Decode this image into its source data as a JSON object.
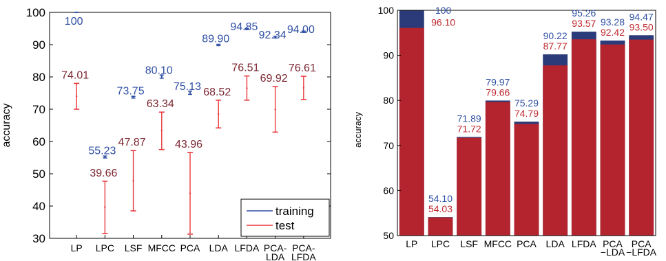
{
  "chart_data": [
    {
      "type": "errorbar",
      "categories": [
        "LP",
        "LPC",
        "LSF",
        "MFCC",
        "PCA",
        "LDA",
        "LFDA",
        "PCA-\nLDA",
        "PCA-\nLFDA"
      ],
      "ylabel": "accuracy",
      "ylim": [
        30,
        100
      ],
      "yticks": [
        30,
        40,
        50,
        60,
        70,
        80,
        90,
        100
      ],
      "legend": {
        "position": "bottom-right",
        "entries": [
          "training",
          "test"
        ]
      },
      "series": [
        {
          "name": "training",
          "color": "#2f4fa3",
          "values": [
            100,
            55.23,
            73.75,
            80.1,
            75.13,
            89.9,
            94.85,
            92.34,
            94.0
          ],
          "labels": [
            "100",
            "55.23",
            "73.75",
            "80.10",
            "75.13",
            "89.90",
            "94.85",
            "92.34",
            "94.00"
          ],
          "err_low": [
            100,
            54.9,
            73.45,
            79.6,
            74.6,
            89.7,
            94.65,
            92.05,
            93.8
          ],
          "err_high": [
            100,
            55.5,
            74.0,
            80.6,
            75.6,
            90.1,
            95.05,
            92.6,
            94.2
          ]
        },
        {
          "name": "test",
          "color": "#e8383c",
          "label_color": "#7a2630",
          "values": [
            74.01,
            39.66,
            47.87,
            63.34,
            43.96,
            68.52,
            76.51,
            69.92,
            76.61
          ],
          "labels": [
            "74.01",
            "39.66",
            "47.87",
            "63.34",
            "43.96",
            "68.52",
            "76.51",
            "69.92",
            "76.61"
          ],
          "err_low": [
            70.0,
            31.5,
            38.5,
            57.5,
            31.3,
            64.2,
            72.8,
            62.9,
            73.0
          ],
          "err_high": [
            78.0,
            47.7,
            57.2,
            69.1,
            56.6,
            72.8,
            80.3,
            77.0,
            80.2
          ]
        }
      ]
    },
    {
      "type": "bar",
      "categories": [
        "LP",
        "LPC",
        "LSF",
        "MFCC",
        "PCA",
        "LDA",
        "LFDA",
        "PCA\n−LDA",
        "PCA\n−LFDA"
      ],
      "ylabel": "accuracy",
      "ylim": [
        50,
        100
      ],
      "yticks": [
        50,
        60,
        70,
        80,
        90,
        100
      ],
      "series": [
        {
          "color": "#2b3a78",
          "values": [
            100,
            54.1,
            71.89,
            79.97,
            75.29,
            90.22,
            95.26,
            93.28,
            94.47
          ],
          "labels": [
            "100",
            "54.10",
            "71.89",
            "79.97",
            "75.29",
            "90.22",
            "95.26",
            "93.28",
            "94.47"
          ],
          "label_color": "#2f4fa3"
        },
        {
          "color": "#b3242f",
          "values": [
            96.1,
            54.03,
            71.72,
            79.66,
            74.79,
            87.77,
            93.57,
            92.42,
            93.5
          ],
          "labels": [
            "96.10",
            "54.03",
            "71.72",
            "79.66",
            "74.79",
            "87.77",
            "93.57",
            "92.42",
            "93.50"
          ],
          "label_color": "#c0282f"
        }
      ]
    }
  ]
}
